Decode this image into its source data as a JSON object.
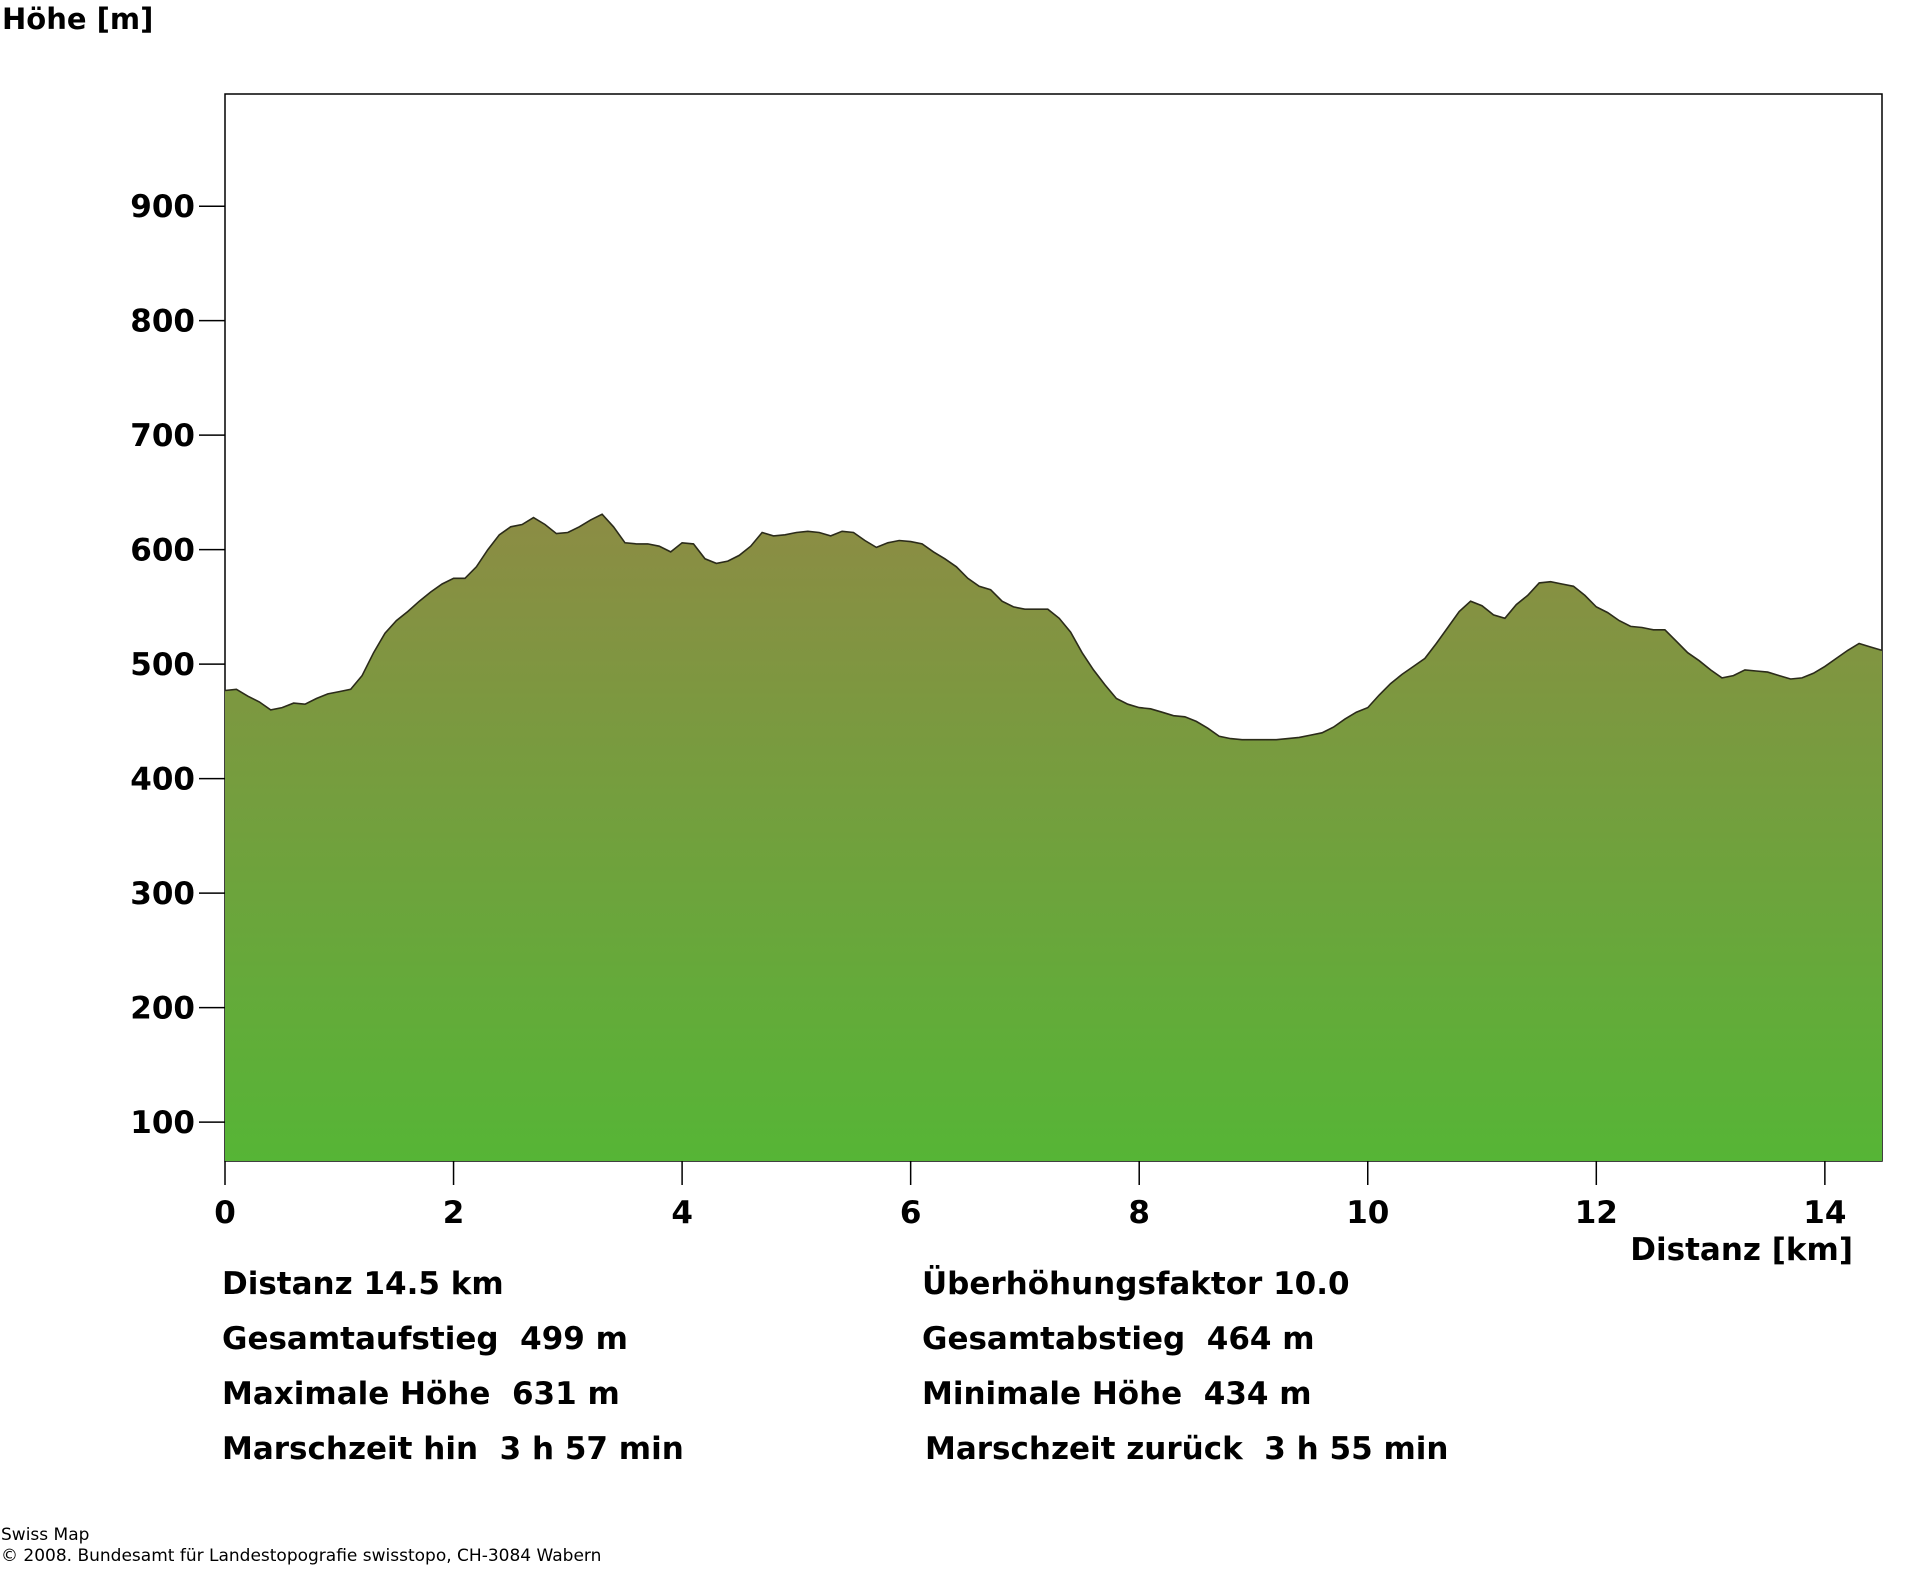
{
  "chart_data": {
    "type": "area",
    "ylabel": "Höhe [m]",
    "xlabel": "Distanz [km]",
    "xlim": [
      0,
      14.5
    ],
    "ylim": [
      66,
      998
    ],
    "xticks": [
      0,
      2,
      4,
      6,
      8,
      10,
      12,
      14
    ],
    "yticks": [
      100,
      200,
      300,
      400,
      500,
      600,
      700,
      800,
      900
    ],
    "fill_gradient": {
      "top": "#8c8c44",
      "bottom": "#56b536"
    },
    "line_color": "#2b2b1a",
    "x": [
      0,
      0.1,
      0.2,
      0.3,
      0.4,
      0.5,
      0.6,
      0.7,
      0.8,
      0.9,
      1.0,
      1.1,
      1.2,
      1.3,
      1.4,
      1.5,
      1.6,
      1.7,
      1.8,
      1.9,
      2.0,
      2.1,
      2.2,
      2.3,
      2.4,
      2.5,
      2.6,
      2.7,
      2.8,
      2.9,
      3.0,
      3.1,
      3.2,
      3.3,
      3.4,
      3.5,
      3.6,
      3.7,
      3.8,
      3.9,
      4.0,
      4.1,
      4.2,
      4.3,
      4.4,
      4.5,
      4.6,
      4.7,
      4.8,
      4.9,
      5.0,
      5.1,
      5.2,
      5.3,
      5.4,
      5.5,
      5.6,
      5.7,
      5.8,
      5.9,
      6.0,
      6.1,
      6.2,
      6.3,
      6.4,
      6.5,
      6.6,
      6.7,
      6.8,
      6.9,
      7.0,
      7.1,
      7.2,
      7.3,
      7.4,
      7.5,
      7.6,
      7.7,
      7.8,
      7.9,
      8.0,
      8.1,
      8.2,
      8.3,
      8.4,
      8.5,
      8.6,
      8.7,
      8.8,
      8.9,
      9.0,
      9.1,
      9.2,
      9.3,
      9.4,
      9.5,
      9.6,
      9.7,
      9.8,
      9.9,
      10.0,
      10.1,
      10.2,
      10.3,
      10.4,
      10.5,
      10.6,
      10.7,
      10.8,
      10.9,
      11.0,
      11.1,
      11.2,
      11.3,
      11.4,
      11.5,
      11.6,
      11.7,
      11.8,
      11.9,
      12.0,
      12.1,
      12.2,
      12.3,
      12.4,
      12.5,
      12.6,
      12.7,
      12.8,
      12.9,
      13.0,
      13.1,
      13.2,
      13.3,
      13.4,
      13.5,
      13.6,
      13.7,
      13.8,
      13.9,
      14.0,
      14.1,
      14.2,
      14.3,
      14.4,
      14.5
    ],
    "y": [
      477,
      478,
      472,
      467,
      460,
      462,
      466,
      465,
      470,
      474,
      476,
      478,
      490,
      510,
      527,
      538,
      546,
      555,
      563,
      570,
      575,
      575,
      585,
      600,
      613,
      620,
      622,
      628,
      622,
      614,
      615,
      620,
      626,
      631,
      620,
      606,
      605,
      605,
      603,
      598,
      606,
      605,
      592,
      588,
      590,
      595,
      603,
      615,
      612,
      613,
      615,
      616,
      615,
      612,
      616,
      615,
      608,
      602,
      606,
      608,
      607,
      605,
      598,
      592,
      585,
      575,
      568,
      565,
      555,
      550,
      548,
      548,
      548,
      540,
      528,
      510,
      495,
      482,
      470,
      465,
      462,
      461,
      458,
      455,
      454,
      450,
      444,
      437,
      435,
      434,
      434,
      434,
      434,
      435,
      436,
      438,
      440,
      445,
      452,
      458,
      462,
      473,
      483,
      491,
      498,
      505,
      518,
      532,
      546,
      555,
      551,
      543,
      540,
      552,
      560,
      571,
      572,
      570,
      568,
      560,
      550,
      545,
      538,
      533,
      532,
      530,
      530,
      520,
      510,
      503,
      495,
      488,
      490,
      495,
      494,
      493,
      490,
      487,
      488,
      492,
      498,
      505,
      512,
      518,
      515,
      512
    ]
  },
  "stats": {
    "distanz": "Distanz 14.5 km",
    "ueberhoehung": "Überhöhungsfaktor 10.0",
    "aufstieg": "Gesamtaufstieg  499 m",
    "abstieg": "Gesamtabstieg  464 m",
    "max_hoehe": "Maximale Höhe  631 m",
    "min_hoehe": "Minimale Höhe  434 m",
    "marschzeit_hin": "Marschzeit hin  3 h 57 min",
    "marschzeit_zurueck": "Marschzeit zurück  3 h 55 min"
  },
  "credits": {
    "line1": "Swiss Map",
    "line2": "© 2008. Bundesamt für Landestopografie swisstopo, CH-3084 Wabern"
  }
}
